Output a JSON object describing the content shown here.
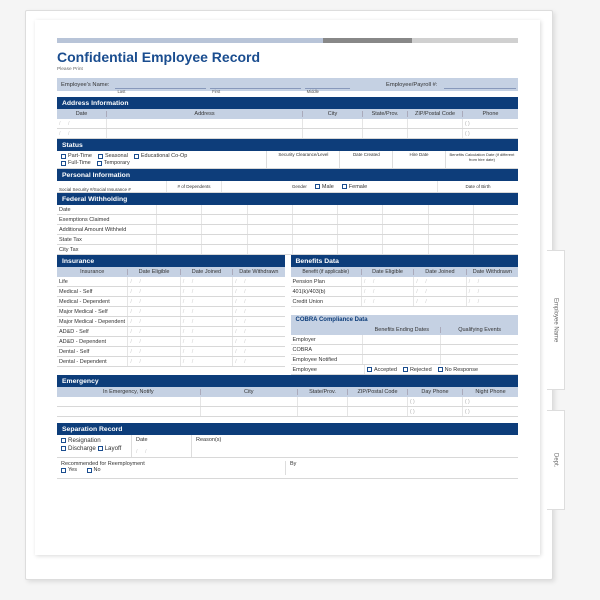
{
  "colors": {
    "header_bg": "#0d3d7a",
    "subheader_bg": "#c5d1e3",
    "title_color": "#1a4d8f",
    "page_bg": "#ffffff",
    "border_color": "#d8d8d8"
  },
  "tabs": {
    "employee_name": "Employee Name",
    "dept": "Dept."
  },
  "title": "Confidential Employee Record",
  "please_print": "Please Print",
  "name_row": {
    "name_label": "Employee's Name:",
    "last": "Last",
    "first": "First",
    "middle": "Middle",
    "payroll_label": "Employee/Payroll #:"
  },
  "address": {
    "header": "Address Information",
    "cols": {
      "date": "Date",
      "address": "Address",
      "city": "City",
      "state": "State/Prov.",
      "zip": "ZIP/Postal Code",
      "phone": "Phone"
    }
  },
  "status": {
    "header": "Status",
    "opts": {
      "pt": "Part-Time",
      "seasonal": "Seasonal",
      "coop": "Educational Co-Op",
      "ft": "Full-Time",
      "temp": "Temporary"
    },
    "cols": {
      "sec": "Security Clearance/Level",
      "created": "Date Created",
      "hire": "Hire Date",
      "benefits": "Benefits Calculation Date (if different from hire date)"
    }
  },
  "personal": {
    "header": "Personal Information",
    "ssn": "Social Security #/Social Insurance #",
    "deps": "# of Dependents",
    "gender": "Gender",
    "male": "Male",
    "female": "Female",
    "dob": "Date of Birth"
  },
  "withholding": {
    "header": "Federal Withholding",
    "rows": {
      "date": "Date",
      "exemptions": "Exemptions Claimed",
      "additional": "Additional Amount Withheld",
      "state": "State Tax",
      "city": "City Tax"
    }
  },
  "insurance": {
    "header": "Insurance",
    "cols": {
      "ins": "Insurance",
      "eligible": "Date Eligible",
      "joined": "Date Joined",
      "withdrawn": "Date Withdrawn"
    },
    "rows": [
      "Life",
      "Medical - Self",
      "Medical - Dependent",
      "Major Medical - Self",
      "Major Medical - Dependent",
      "AD&D - Self",
      "AD&D - Dependent",
      "Dental - Self",
      "Dental - Dependent"
    ]
  },
  "benefits": {
    "header": "Benefits Data",
    "cols": {
      "benefit": "Benefit (if applicable)",
      "eligible": "Date Eligible",
      "joined": "Date Joined",
      "withdrawn": "Date Withdrawn"
    },
    "rows": [
      "Pension Plan",
      "401(k)/403(b)",
      "Credit Union"
    ]
  },
  "cobra": {
    "header": "COBRA Compliance Data",
    "cols": {
      "ending": "Benefits Ending Dates",
      "events": "Qualifying Events"
    },
    "rows": {
      "employer": "Employer",
      "cobra": "COBRA",
      "notified": "Employee Notified",
      "employee": "Employee"
    },
    "opts": {
      "accepted": "Accepted",
      "rejected": "Rejected",
      "noresp": "No Response"
    }
  },
  "emergency": {
    "header": "Emergency",
    "cols": {
      "notify": "In Emergency, Notify",
      "city": "City",
      "state": "State/Prov.",
      "zip": "ZIP/Postal Code",
      "day": "Day Phone",
      "night": "Night Phone"
    }
  },
  "separation": {
    "header": "Separation Record",
    "opts": {
      "resignation": "Resignation",
      "discharge": "Discharge",
      "layoff": "Layoff"
    },
    "date": "Date",
    "reasons": "Reason(s)",
    "recommended": "Recommended for Reemployment",
    "yes": "Yes",
    "no": "No",
    "by": "By"
  }
}
